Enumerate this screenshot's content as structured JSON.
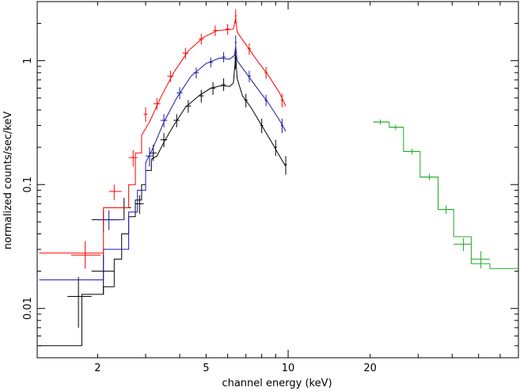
{
  "chart_data": {
    "type": "scatter",
    "title": "",
    "xlabel": "channel energy (keV)",
    "ylabel": "normalized counts/sec/keV",
    "xscale": "log",
    "yscale": "log",
    "xlim": [
      1.2,
      70
    ],
    "ylim": [
      0.004,
      3.0
    ],
    "x_tick_labels": [
      {
        "value": 2,
        "label": "2"
      },
      {
        "value": 5,
        "label": "5"
      },
      {
        "value": 10,
        "label": "10"
      },
      {
        "value": 20,
        "label": "20"
      }
    ],
    "y_tick_labels": [
      {
        "value": 0.01,
        "label": "0.01"
      },
      {
        "value": 0.1,
        "label": "0.1"
      },
      {
        "value": 1,
        "label": "1"
      }
    ],
    "grid": false,
    "legend": "none",
    "series": [
      {
        "color": "#000000",
        "model_steps": [
          [
            1.22,
            0.005
          ],
          [
            1.75,
            0.005
          ],
          [
            1.75,
            0.013
          ],
          [
            2.1,
            0.013
          ],
          [
            2.1,
            0.015
          ],
          [
            2.3,
            0.015
          ],
          [
            2.3,
            0.025
          ],
          [
            2.45,
            0.025
          ],
          [
            2.45,
            0.04
          ],
          [
            2.6,
            0.04
          ],
          [
            2.6,
            0.055
          ],
          [
            2.75,
            0.055
          ],
          [
            2.75,
            0.075
          ],
          [
            2.9,
            0.075
          ],
          [
            2.9,
            0.1
          ],
          [
            3.0,
            0.1
          ],
          [
            3.0,
            0.13
          ],
          [
            3.15,
            0.13
          ],
          [
            3.15,
            0.16
          ],
          [
            3.3,
            0.17
          ],
          [
            3.5,
            0.22
          ],
          [
            3.8,
            0.3
          ],
          [
            4.2,
            0.42
          ],
          [
            4.7,
            0.52
          ],
          [
            5.2,
            0.6
          ],
          [
            5.7,
            0.63
          ],
          [
            6.1,
            0.62
          ],
          [
            6.3,
            0.66
          ],
          [
            6.42,
            1.1
          ],
          [
            6.5,
            0.72
          ],
          [
            6.8,
            0.52
          ],
          [
            7.3,
            0.42
          ],
          [
            8.0,
            0.3
          ],
          [
            8.7,
            0.22
          ],
          [
            9.3,
            0.17
          ],
          [
            9.8,
            0.14
          ]
        ],
        "points": [
          {
            "x": 1.7,
            "y": 0.0125,
            "xerr": [
              1.55,
              1.9
            ],
            "yerr": [
              0.007,
              0.018
            ]
          },
          {
            "x": 2.1,
            "y": 0.02,
            "xerr": [
              1.9,
              2.3
            ],
            "yerr": [
              0.013,
              0.027
            ]
          },
          {
            "x": 2.1,
            "y": 0.052,
            "xerr": [
              1.9,
              2.4
            ],
            "yerr": [
              0.042,
              0.062
            ]
          },
          {
            "x": 2.5,
            "y": 0.065,
            "xerr": [
              2.4,
              2.65
            ],
            "yerr": [
              0.052,
              0.078
            ]
          },
          {
            "x": 2.85,
            "y": 0.07,
            "xerr": [
              2.75,
              2.95
            ],
            "yerr": [
              0.058,
              0.082
            ]
          },
          {
            "x": 3.2,
            "y": 0.18,
            "xerr": [
              3.1,
              3.3
            ],
            "yerr": [
              0.155,
              0.21
            ]
          },
          {
            "x": 3.5,
            "y": 0.23,
            "xerr": [
              3.4,
              3.6
            ],
            "yerr": [
              0.2,
              0.26
            ]
          },
          {
            "x": 3.9,
            "y": 0.33,
            "xerr": [
              3.8,
              4.0
            ],
            "yerr": [
              0.29,
              0.37
            ]
          },
          {
            "x": 4.3,
            "y": 0.43,
            "xerr": [
              4.2,
              4.4
            ],
            "yerr": [
              0.38,
              0.48
            ]
          },
          {
            "x": 4.8,
            "y": 0.52,
            "xerr": [
              4.7,
              4.9
            ],
            "yerr": [
              0.46,
              0.58
            ]
          },
          {
            "x": 5.3,
            "y": 0.6,
            "xerr": [
              5.2,
              5.4
            ],
            "yerr": [
              0.53,
              0.67
            ]
          },
          {
            "x": 5.8,
            "y": 0.64,
            "xerr": [
              5.7,
              5.9
            ],
            "yerr": [
              0.57,
              0.72
            ]
          },
          {
            "x": 6.4,
            "y": 1.05,
            "xerr": [
              6.35,
              6.45
            ],
            "yerr": [
              0.85,
              1.2
            ]
          },
          {
            "x": 7.0,
            "y": 0.48,
            "xerr": [
              6.9,
              7.1
            ],
            "yerr": [
              0.42,
              0.54
            ]
          },
          {
            "x": 8.0,
            "y": 0.3,
            "xerr": [
              7.9,
              8.1
            ],
            "yerr": [
              0.26,
              0.34
            ]
          },
          {
            "x": 9.0,
            "y": 0.2,
            "xerr": [
              8.9,
              9.1
            ],
            "yerr": [
              0.17,
              0.23
            ]
          },
          {
            "x": 9.8,
            "y": 0.145,
            "xerr": [
              9.7,
              9.9
            ],
            "yerr": [
              0.12,
              0.17
            ]
          }
        ]
      },
      {
        "color": "#1a1aa6",
        "model_steps": [
          [
            1.22,
            0.017
          ],
          [
            1.75,
            0.017
          ],
          [
            1.75,
            0.017
          ],
          [
            2.1,
            0.017
          ],
          [
            2.1,
            0.03
          ],
          [
            2.6,
            0.03
          ],
          [
            2.6,
            0.06
          ],
          [
            2.8,
            0.06
          ],
          [
            2.8,
            0.09
          ],
          [
            3.0,
            0.09
          ],
          [
            3.0,
            0.15
          ],
          [
            3.2,
            0.2
          ],
          [
            3.5,
            0.32
          ],
          [
            3.9,
            0.5
          ],
          [
            4.4,
            0.75
          ],
          [
            5.0,
            0.95
          ],
          [
            5.6,
            1.05
          ],
          [
            6.1,
            1.03
          ],
          [
            6.35,
            1.1
          ],
          [
            6.42,
            1.3
          ],
          [
            6.5,
            1.0
          ],
          [
            7.0,
            0.8
          ],
          [
            7.7,
            0.6
          ],
          [
            8.5,
            0.45
          ],
          [
            9.3,
            0.33
          ],
          [
            9.8,
            0.27
          ]
        ],
        "points": [
          {
            "x": 2.2,
            "y": 0.052,
            "xerr": [
              2.0,
              2.5
            ],
            "yerr": [
              0.043,
              0.062
            ]
          },
          {
            "x": 3.1,
            "y": 0.17,
            "xerr": [
              3.0,
              3.2
            ],
            "yerr": [
              0.14,
              0.2
            ]
          },
          {
            "x": 3.5,
            "y": 0.33,
            "xerr": [
              3.4,
              3.6
            ],
            "yerr": [
              0.29,
              0.37
            ]
          },
          {
            "x": 4.0,
            "y": 0.55,
            "xerr": [
              3.9,
              4.1
            ],
            "yerr": [
              0.49,
              0.61
            ]
          },
          {
            "x": 4.6,
            "y": 0.8,
            "xerr": [
              4.5,
              4.7
            ],
            "yerr": [
              0.72,
              0.88
            ]
          },
          {
            "x": 5.2,
            "y": 0.97,
            "xerr": [
              5.1,
              5.3
            ],
            "yerr": [
              0.88,
              1.06
            ]
          },
          {
            "x": 5.8,
            "y": 1.07,
            "xerr": [
              5.7,
              5.9
            ],
            "yerr": [
              0.97,
              1.17
            ]
          },
          {
            "x": 6.42,
            "y": 1.4,
            "xerr": [
              6.37,
              6.47
            ],
            "yerr": [
              1.2,
              1.6
            ]
          },
          {
            "x": 7.2,
            "y": 0.75,
            "xerr": [
              7.1,
              7.3
            ],
            "yerr": [
              0.67,
              0.83
            ]
          },
          {
            "x": 8.3,
            "y": 0.48,
            "xerr": [
              8.2,
              8.4
            ],
            "yerr": [
              0.43,
              0.53
            ]
          },
          {
            "x": 9.5,
            "y": 0.3,
            "xerr": [
              9.4,
              9.6
            ],
            "yerr": [
              0.26,
              0.34
            ]
          }
        ]
      },
      {
        "color": "#ff0000",
        "model_steps": [
          [
            1.22,
            0.028
          ],
          [
            1.75,
            0.028
          ],
          [
            1.75,
            0.028
          ],
          [
            2.1,
            0.028
          ],
          [
            2.1,
            0.065
          ],
          [
            2.6,
            0.065
          ],
          [
            2.6,
            0.1
          ],
          [
            2.75,
            0.1
          ],
          [
            2.75,
            0.18
          ],
          [
            2.9,
            0.18
          ],
          [
            2.9,
            0.25
          ],
          [
            3.1,
            0.32
          ],
          [
            3.4,
            0.5
          ],
          [
            3.8,
            0.8
          ],
          [
            4.3,
            1.2
          ],
          [
            4.9,
            1.55
          ],
          [
            5.5,
            1.75
          ],
          [
            6.0,
            1.78
          ],
          [
            6.3,
            1.8
          ],
          [
            6.42,
            2.2
          ],
          [
            6.5,
            1.7
          ],
          [
            7.0,
            1.35
          ],
          [
            7.7,
            1.0
          ],
          [
            8.5,
            0.75
          ],
          [
            9.3,
            0.55
          ],
          [
            9.8,
            0.43
          ]
        ],
        "points": [
          {
            "x": 1.8,
            "y": 0.027,
            "xerr": [
              1.6,
              2.05
            ],
            "yerr": [
              0.021,
              0.035
            ]
          },
          {
            "x": 2.3,
            "y": 0.088,
            "xerr": [
              2.2,
              2.45
            ],
            "yerr": [
              0.075,
              0.1
            ]
          },
          {
            "x": 2.7,
            "y": 0.165,
            "xerr": [
              2.6,
              2.8
            ],
            "yerr": [
              0.14,
              0.19
            ]
          },
          {
            "x": 3.0,
            "y": 0.37,
            "xerr": [
              2.95,
              3.05
            ],
            "yerr": [
              0.32,
              0.42
            ]
          },
          {
            "x": 3.3,
            "y": 0.45,
            "xerr": [
              3.2,
              3.4
            ],
            "yerr": [
              0.4,
              0.5
            ]
          },
          {
            "x": 3.7,
            "y": 0.75,
            "xerr": [
              3.6,
              3.8
            ],
            "yerr": [
              0.67,
              0.83
            ]
          },
          {
            "x": 4.2,
            "y": 1.15,
            "xerr": [
              4.1,
              4.3
            ],
            "yerr": [
              1.03,
              1.27
            ]
          },
          {
            "x": 4.8,
            "y": 1.5,
            "xerr": [
              4.7,
              4.9
            ],
            "yerr": [
              1.35,
              1.65
            ]
          },
          {
            "x": 5.4,
            "y": 1.75,
            "xerr": [
              5.3,
              5.5
            ],
            "yerr": [
              1.58,
              1.92
            ]
          },
          {
            "x": 6.0,
            "y": 1.8,
            "xerr": [
              5.9,
              6.1
            ],
            "yerr": [
              1.62,
              1.98
            ]
          },
          {
            "x": 6.42,
            "y": 2.3,
            "xerr": [
              6.37,
              6.47
            ],
            "yerr": [
              2.0,
              2.6
            ]
          },
          {
            "x": 7.2,
            "y": 1.25,
            "xerr": [
              7.1,
              7.3
            ],
            "yerr": [
              1.12,
              1.38
            ]
          },
          {
            "x": 8.3,
            "y": 0.8,
            "xerr": [
              8.2,
              8.4
            ],
            "yerr": [
              0.71,
              0.89
            ]
          },
          {
            "x": 9.5,
            "y": 0.48,
            "xerr": [
              9.4,
              9.6
            ],
            "yerr": [
              0.42,
              0.54
            ]
          }
        ]
      },
      {
        "color": "#22aa22",
        "model_steps": [
          [
            20.5,
            0.32
          ],
          [
            23.5,
            0.32
          ],
          [
            23.5,
            0.29
          ],
          [
            26.5,
            0.29
          ],
          [
            26.5,
            0.185
          ],
          [
            30.5,
            0.185
          ],
          [
            30.5,
            0.115
          ],
          [
            35.5,
            0.115
          ],
          [
            35.5,
            0.063
          ],
          [
            40.5,
            0.063
          ],
          [
            40.5,
            0.038
          ],
          [
            47,
            0.038
          ],
          [
            47,
            0.023
          ],
          [
            55,
            0.023
          ],
          [
            55,
            0.021
          ],
          [
            70,
            0.021
          ]
        ],
        "points": [
          {
            "x": 21.8,
            "y": 0.32,
            "xerr": [
              20.5,
              23.5
            ],
            "yerr": [
              0.305,
              0.335
            ]
          },
          {
            "x": 24.8,
            "y": 0.29,
            "xerr": [
              23.5,
              26.5
            ],
            "yerr": [
              0.275,
              0.305
            ]
          },
          {
            "x": 28.5,
            "y": 0.185,
            "xerr": [
              26.5,
              30.5
            ],
            "yerr": [
              0.175,
              0.195
            ]
          },
          {
            "x": 33.0,
            "y": 0.115,
            "xerr": [
              30.5,
              35.5
            ],
            "yerr": [
              0.108,
              0.122
            ]
          },
          {
            "x": 38.0,
            "y": 0.063,
            "xerr": [
              35.5,
              40.5
            ],
            "yerr": [
              0.058,
              0.068
            ]
          },
          {
            "x": 44.0,
            "y": 0.033,
            "xerr": [
              40.5,
              47
            ],
            "yerr": [
              0.029,
              0.037
            ]
          },
          {
            "x": 51.0,
            "y": 0.025,
            "xerr": [
              47,
              55
            ],
            "yerr": [
              0.021,
              0.029
            ]
          }
        ]
      }
    ]
  }
}
